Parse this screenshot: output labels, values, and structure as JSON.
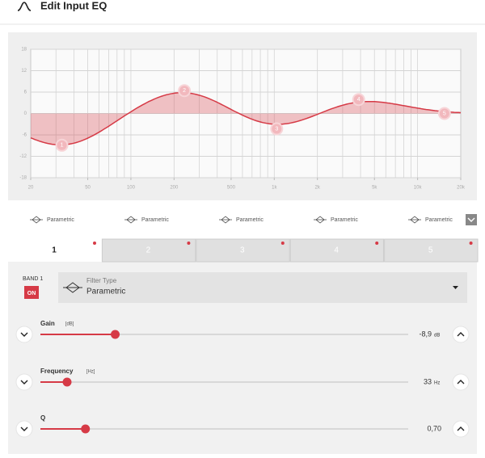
{
  "header": {
    "title": "Edit Input EQ"
  },
  "eq_graph": {
    "xlim": [
      20,
      20000
    ],
    "ylim": [
      -18,
      18
    ],
    "log_x": true,
    "grid": true,
    "color": "#d63a46",
    "yticks": [
      18,
      12,
      6,
      0,
      -6,
      -12,
      -18
    ],
    "xticks": [
      20,
      50,
      100,
      200,
      500,
      {
        "value": 1000,
        "label": "1k"
      },
      {
        "value": 2000,
        "label": "2k"
      },
      {
        "value": 5000,
        "label": "5k"
      },
      {
        "value": 10000,
        "label": "10k"
      },
      {
        "value": 20000,
        "label": "20k"
      }
    ],
    "bands": [
      {
        "label": "1",
        "frequency": 33,
        "gain": -8.9
      },
      {
        "label": "2",
        "frequency": 236,
        "gain": 6.4
      },
      {
        "label": "3",
        "frequency": 1040,
        "gain": -4.3
      },
      {
        "label": "4",
        "frequency": 3880,
        "gain": 3.9
      },
      {
        "label": "5",
        "frequency": 15400,
        "gain": 0
      }
    ]
  },
  "filter_row": [
    "Parametric",
    "Parametric",
    "Parametric",
    "Parametric",
    "Parametric"
  ],
  "tabs": [
    "1",
    "2",
    "3",
    "4",
    "5"
  ],
  "band_panel": {
    "band_label": "BAND 1",
    "on": "ON",
    "filter_type_label": "Filter Type",
    "filter_type": "Parametric",
    "params": [
      {
        "name": "Gain",
        "unit_tag": "[dB]",
        "value": -8.9,
        "value_label": "-8,9",
        "unit": "dB"
      },
      {
        "name": "Frequency",
        "unit_tag": "[Hz]",
        "value": 33,
        "value_label": "33",
        "unit": "Hz"
      },
      {
        "name": "Q",
        "value": 0.7,
        "value_label": "0,70"
      }
    ]
  }
}
